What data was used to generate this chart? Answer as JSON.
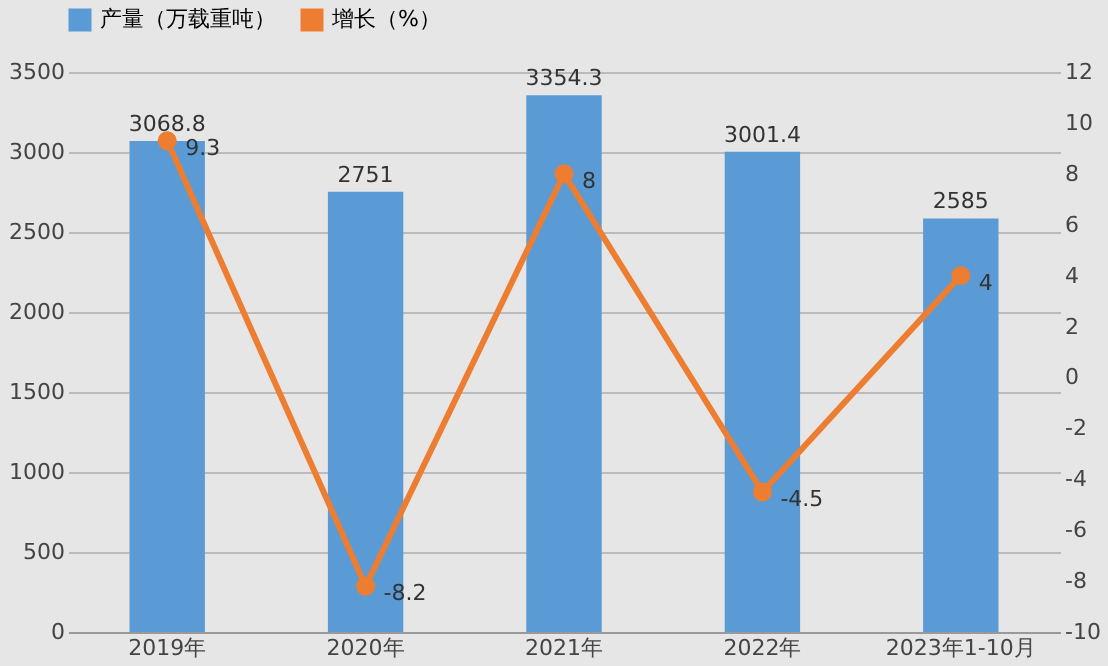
{
  "chart_data": {
    "type": "bar",
    "categories": [
      "2019年",
      "2020年",
      "2021年",
      "2022年",
      "2023年1-10月"
    ],
    "series": [
      {
        "name": "产量（万载重吨）",
        "color": "#5b9bd5",
        "values": [
          3068.8,
          2751,
          3354.3,
          3001.4,
          2585
        ]
      },
      {
        "name": "增长（%）",
        "color": "#ed7d31",
        "type": "line",
        "axis": "y2",
        "marker": "circle",
        "values": [
          9.3,
          -8.2,
          8,
          -4.5,
          4
        ]
      }
    ],
    "ylim": [
      0,
      3500
    ],
    "yticks": [
      0,
      500,
      1000,
      1500,
      2000,
      2500,
      3000,
      3500
    ],
    "y2lim": [
      -10,
      12
    ],
    "y2ticks": [
      -10,
      -8,
      -6,
      -4,
      -2,
      0,
      2,
      4,
      6,
      8,
      10,
      12
    ],
    "grid": "y",
    "legend": "top",
    "data_labels": true
  }
}
